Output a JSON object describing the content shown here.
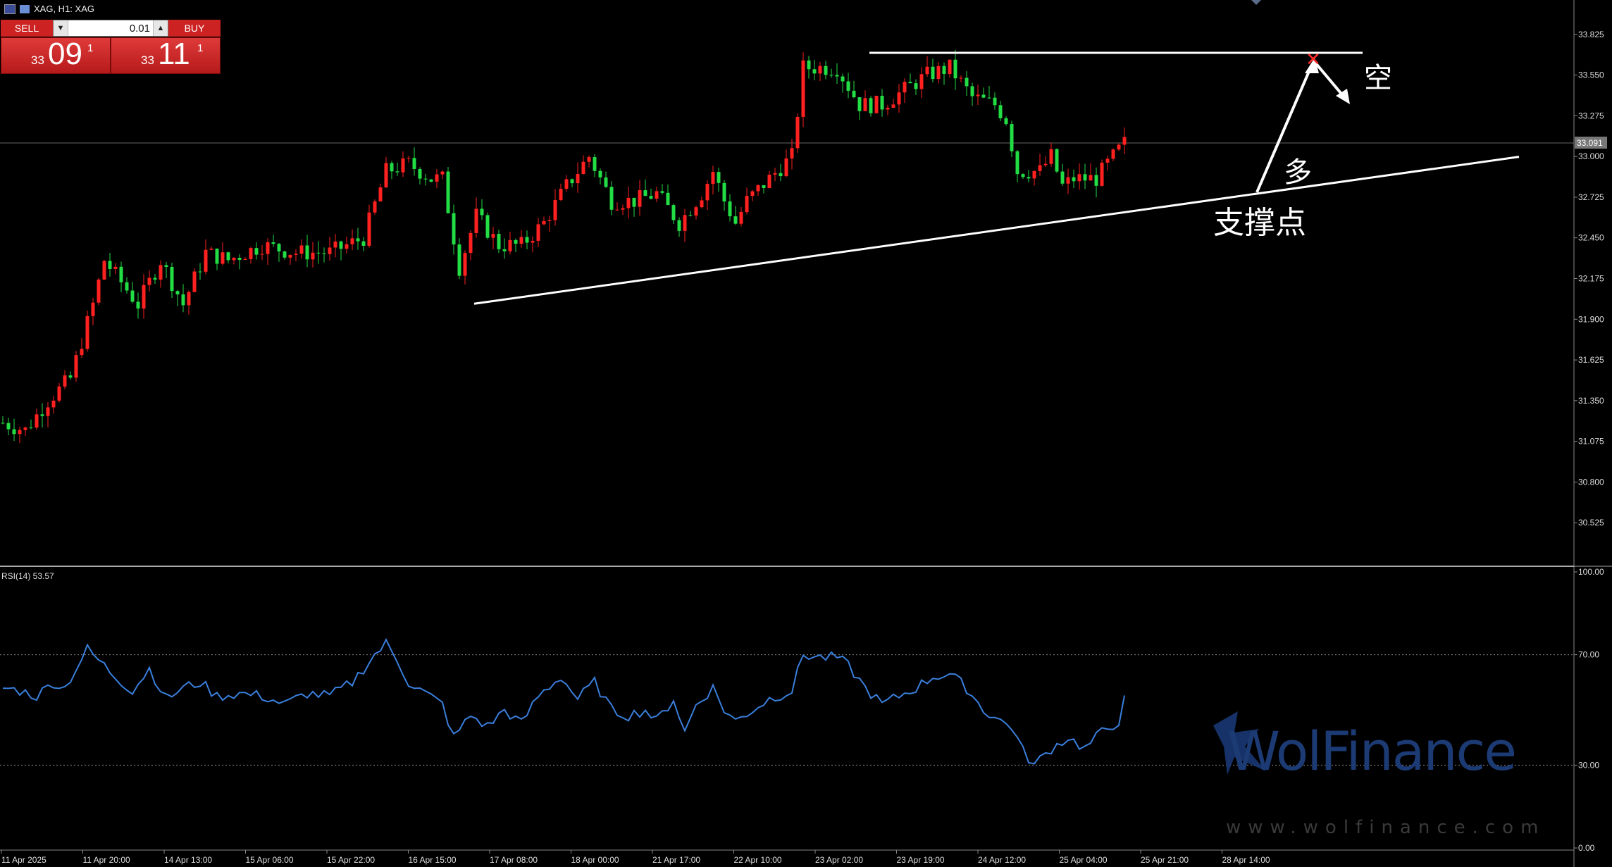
{
  "window": {
    "title": "XAG, H1: XAG"
  },
  "trade_panel": {
    "sell_label": "SELL",
    "buy_label": "BUY",
    "lot": "0.01",
    "sell_price": {
      "prefix": "33",
      "big": "09",
      "sup": "1"
    },
    "buy_price": {
      "prefix": "33",
      "big": "11",
      "sup": "1"
    }
  },
  "annotations": {
    "short": "空",
    "long": "多",
    "support": "支撑点"
  },
  "watermark": {
    "brand": "WolFinance",
    "url": "www.wolfinance.com"
  },
  "colors": {
    "bull": "#ff2020",
    "bear": "#22dd44",
    "rsi": "#3a7fdc",
    "background": "#000000"
  },
  "chart_data": [
    {
      "type": "candlestick",
      "symbol": "XAG",
      "timeframe": "H1",
      "title": "XAG, H1: XAG",
      "ylim": [
        30.25,
        34.0
      ],
      "y_ticks": [
        "33.825",
        "33.550",
        "33.275",
        "33.000",
        "32.725",
        "32.450",
        "32.175",
        "31.900",
        "31.625",
        "31.350",
        "31.075",
        "30.800",
        "30.525"
      ],
      "current_price_label": "33.091",
      "x_ticks": [
        "11 Apr 2025",
        "11 Apr 20:00",
        "14 Apr 13:00",
        "15 Apr 06:00",
        "15 Apr 22:00",
        "16 Apr 15:00",
        "17 Apr 08:00",
        "18 Apr 00:00",
        "21 Apr 17:00",
        "22 Apr 10:00",
        "23 Apr 02:00",
        "23 Apr 19:00",
        "24 Apr 12:00",
        "25 Apr 04:00",
        "25 Apr 21:00",
        "28 Apr 14:00"
      ],
      "close_path": [
        {
          "i": 0,
          "v": 31.2
        },
        {
          "i": 4,
          "v": 31.15
        },
        {
          "i": 8,
          "v": 31.35
        },
        {
          "i": 12,
          "v": 31.5
        },
        {
          "i": 16,
          "v": 32.0
        },
        {
          "i": 18,
          "v": 32.3
        },
        {
          "i": 20,
          "v": 32.2
        },
        {
          "i": 24,
          "v": 32.0
        },
        {
          "i": 28,
          "v": 32.3
        },
        {
          "i": 32,
          "v": 32.0
        },
        {
          "i": 36,
          "v": 32.35
        },
        {
          "i": 40,
          "v": 32.3
        },
        {
          "i": 46,
          "v": 32.4
        },
        {
          "i": 52,
          "v": 32.35
        },
        {
          "i": 58,
          "v": 32.35
        },
        {
          "i": 64,
          "v": 32.45
        },
        {
          "i": 68,
          "v": 32.9
        },
        {
          "i": 72,
          "v": 32.95
        },
        {
          "i": 76,
          "v": 32.85
        },
        {
          "i": 78,
          "v": 32.85
        },
        {
          "i": 81,
          "v": 32.25
        },
        {
          "i": 84,
          "v": 32.6
        },
        {
          "i": 88,
          "v": 32.4
        },
        {
          "i": 92,
          "v": 32.4
        },
        {
          "i": 96,
          "v": 32.55
        },
        {
          "i": 100,
          "v": 32.8
        },
        {
          "i": 104,
          "v": 33.0
        },
        {
          "i": 108,
          "v": 32.7
        },
        {
          "i": 112,
          "v": 32.7
        },
        {
          "i": 116,
          "v": 32.75
        },
        {
          "i": 120,
          "v": 32.55
        },
        {
          "i": 124,
          "v": 32.75
        },
        {
          "i": 126,
          "v": 32.9
        },
        {
          "i": 128,
          "v": 32.7
        },
        {
          "i": 130,
          "v": 32.55
        },
        {
          "i": 132,
          "v": 32.7
        },
        {
          "i": 136,
          "v": 32.85
        },
        {
          "i": 140,
          "v": 33.0
        },
        {
          "i": 142,
          "v": 33.6
        },
        {
          "i": 148,
          "v": 33.6
        },
        {
          "i": 152,
          "v": 33.35
        },
        {
          "i": 156,
          "v": 33.35
        },
        {
          "i": 160,
          "v": 33.45
        },
        {
          "i": 164,
          "v": 33.55
        },
        {
          "i": 168,
          "v": 33.6
        },
        {
          "i": 172,
          "v": 33.4
        },
        {
          "i": 176,
          "v": 33.35
        },
        {
          "i": 178,
          "v": 33.25
        },
        {
          "i": 180,
          "v": 32.9
        },
        {
          "i": 184,
          "v": 32.9
        },
        {
          "i": 186,
          "v": 33.0
        },
        {
          "i": 188,
          "v": 32.8
        },
        {
          "i": 190,
          "v": 32.85
        },
        {
          "i": 194,
          "v": 32.85
        },
        {
          "i": 196,
          "v": 32.95
        },
        {
          "i": 199,
          "v": 33.09
        }
      ],
      "horizontal_resistance": 33.7,
      "support_trendline": [
        {
          "i": 78,
          "v": 32.1
        },
        {
          "i": 241,
          "v": 32.95
        }
      ]
    },
    {
      "type": "line",
      "title": "RSI(14) 53.57",
      "ylim": [
        0,
        100
      ],
      "y_ticks": [
        "100.00",
        "70.00",
        "30.00",
        "0.00"
      ],
      "levels": [
        70,
        30
      ],
      "series": [
        {
          "name": "RSI(14)",
          "values": [
            {
              "i": 0,
              "v": 58
            },
            {
              "i": 3,
              "v": 57
            },
            {
              "i": 6,
              "v": 55
            },
            {
              "i": 9,
              "v": 60
            },
            {
              "i": 11,
              "v": 58
            },
            {
              "i": 13,
              "v": 65
            },
            {
              "i": 15,
              "v": 72
            },
            {
              "i": 17,
              "v": 68
            },
            {
              "i": 20,
              "v": 62
            },
            {
              "i": 23,
              "v": 57
            },
            {
              "i": 26,
              "v": 65
            },
            {
              "i": 29,
              "v": 54
            },
            {
              "i": 32,
              "v": 58
            },
            {
              "i": 35,
              "v": 60
            },
            {
              "i": 38,
              "v": 55
            },
            {
              "i": 42,
              "v": 56
            },
            {
              "i": 46,
              "v": 55
            },
            {
              "i": 50,
              "v": 52
            },
            {
              "i": 54,
              "v": 56
            },
            {
              "i": 58,
              "v": 55
            },
            {
              "i": 62,
              "v": 60
            },
            {
              "i": 66,
              "v": 70
            },
            {
              "i": 68,
              "v": 74
            },
            {
              "i": 70,
              "v": 68
            },
            {
              "i": 72,
              "v": 60
            },
            {
              "i": 75,
              "v": 56
            },
            {
              "i": 78,
              "v": 52
            },
            {
              "i": 80,
              "v": 40
            },
            {
              "i": 83,
              "v": 48
            },
            {
              "i": 86,
              "v": 44
            },
            {
              "i": 89,
              "v": 50
            },
            {
              "i": 92,
              "v": 45
            },
            {
              "i": 95,
              "v": 55
            },
            {
              "i": 99,
              "v": 62
            },
            {
              "i": 102,
              "v": 54
            },
            {
              "i": 105,
              "v": 60
            },
            {
              "i": 108,
              "v": 50
            },
            {
              "i": 111,
              "v": 48
            },
            {
              "i": 114,
              "v": 50
            },
            {
              "i": 116,
              "v": 46
            },
            {
              "i": 119,
              "v": 54
            },
            {
              "i": 121,
              "v": 42
            },
            {
              "i": 123,
              "v": 52
            },
            {
              "i": 126,
              "v": 58
            },
            {
              "i": 128,
              "v": 50
            },
            {
              "i": 130,
              "v": 46
            },
            {
              "i": 133,
              "v": 50
            },
            {
              "i": 136,
              "v": 54
            },
            {
              "i": 140,
              "v": 57
            },
            {
              "i": 142,
              "v": 70
            },
            {
              "i": 145,
              "v": 69
            },
            {
              "i": 148,
              "v": 69
            },
            {
              "i": 150,
              "v": 66
            },
            {
              "i": 153,
              "v": 58
            },
            {
              "i": 156,
              "v": 52
            },
            {
              "i": 159,
              "v": 55
            },
            {
              "i": 162,
              "v": 58
            },
            {
              "i": 165,
              "v": 62
            },
            {
              "i": 168,
              "v": 63
            },
            {
              "i": 171,
              "v": 58
            },
            {
              "i": 174,
              "v": 50
            },
            {
              "i": 177,
              "v": 46
            },
            {
              "i": 179,
              "v": 44
            },
            {
              "i": 181,
              "v": 35
            },
            {
              "i": 183,
              "v": 30
            },
            {
              "i": 186,
              "v": 36
            },
            {
              "i": 189,
              "v": 40
            },
            {
              "i": 192,
              "v": 36
            },
            {
              "i": 195,
              "v": 42
            },
            {
              "i": 198,
              "v": 46
            },
            {
              "i": 199,
              "v": 53.57
            }
          ]
        }
      ]
    }
  ]
}
